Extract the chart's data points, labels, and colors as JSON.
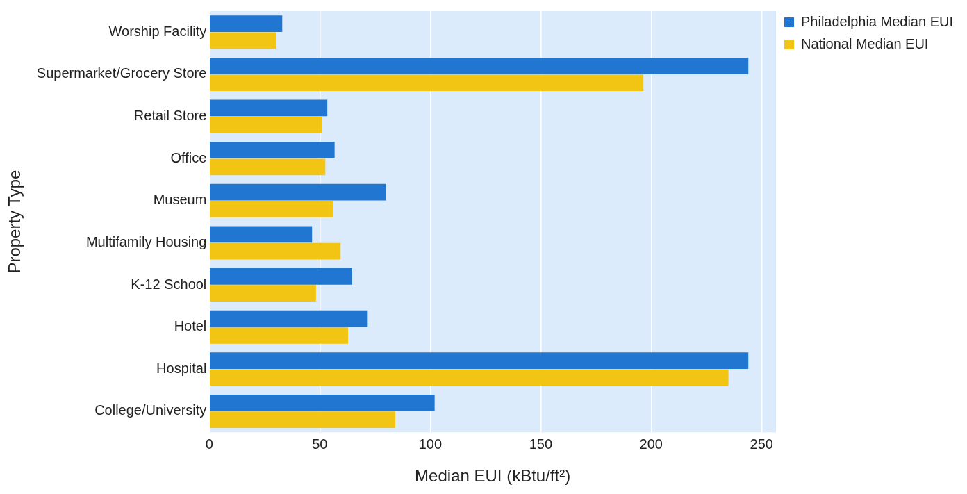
{
  "chart_data": {
    "type": "bar",
    "orientation": "horizontal",
    "xlabel": "Median EUI (kBtu/ft²)",
    "ylabel": "Property Type",
    "categories": [
      "Worship Facility",
      "Supermarket/Grocery Store",
      "Retail Store",
      "Office",
      "Museum",
      "Multifamily Housing",
      "K-12 School",
      "Hotel",
      "Hospital",
      "College/University"
    ],
    "series": [
      {
        "name": "Philadelphia Median EUI",
        "color": "#2176d2",
        "values": [
          33,
          244,
          53.4,
          56.7,
          80,
          46.5,
          64.6,
          71.7,
          244,
          102
        ]
      },
      {
        "name": "National Median EUI",
        "color": "#f2c515",
        "values": [
          30.1,
          196.5,
          51,
          52.5,
          56,
          59.4,
          48.3,
          62.8,
          235,
          84.2
        ]
      }
    ],
    "xlim": [
      0,
      256.5
    ],
    "xticks": [
      0,
      50,
      100,
      150,
      200,
      250
    ],
    "grid": "x",
    "legend": "top right"
  }
}
